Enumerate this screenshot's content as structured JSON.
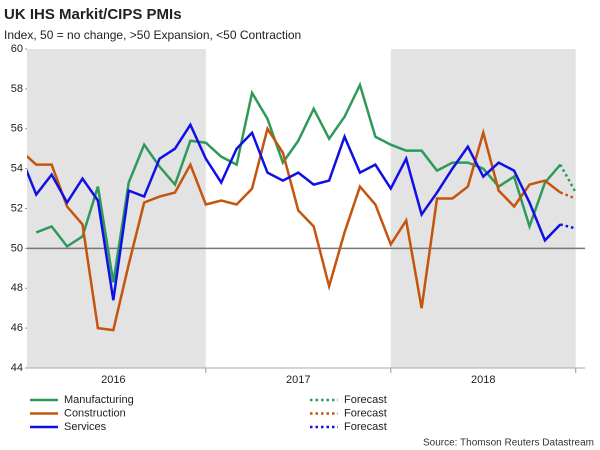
{
  "chart_data": {
    "type": "line",
    "title": "UK IHS Markit/CIPS PMIs",
    "subtitle": "Index, 50 = no change, >50 Expansion, <50 Contraction",
    "source": "Source: Thomson Reuters Datastream",
    "x": [
      0,
      1,
      2,
      3,
      4,
      5,
      6,
      7,
      8,
      9,
      10,
      11,
      12,
      13,
      14,
      15,
      16,
      17,
      18,
      19,
      20,
      21,
      22,
      23,
      24,
      25,
      26,
      27,
      28,
      29,
      30,
      31,
      32,
      33,
      34,
      35,
      36
    ],
    "xlim": [
      0.4,
      36.6
    ],
    "xticks": [
      {
        "value": 6,
        "label": "2016"
      },
      {
        "value": 18,
        "label": "2017"
      },
      {
        "value": 30,
        "label": "2018"
      }
    ],
    "ylim": [
      44,
      60
    ],
    "yticks": [
      44,
      46,
      48,
      50,
      52,
      54,
      56,
      58,
      60
    ],
    "reference_line": 50,
    "series": [
      {
        "name": "Manufacturing",
        "color": "#2e9a5a",
        "style": "solid",
        "values": [
          null,
          50.8,
          51.1,
          50.1,
          50.6,
          53.1,
          48.3,
          53.3,
          55.2,
          54.1,
          53.2,
          55.4,
          55.3,
          54.6,
          54.2,
          57.8,
          56.5,
          54.3,
          55.4,
          57.0,
          55.5,
          56.6,
          58.2,
          55.6,
          55.2,
          54.9,
          54.9,
          53.9,
          54.3,
          54.3,
          54.0,
          53.1,
          53.6,
          51.1,
          53.3,
          54.2,
          null
        ]
      },
      {
        "name": "Construction",
        "color": "#c4540e",
        "style": "solid",
        "values": [
          54.9,
          54.2,
          54.2,
          52.1,
          51.2,
          46.0,
          45.9,
          49.2,
          52.3,
          52.6,
          52.8,
          54.2,
          52.2,
          52.4,
          52.2,
          53.0,
          56.0,
          54.8,
          51.9,
          51.1,
          48.1,
          50.8,
          53.1,
          52.2,
          50.2,
          51.4,
          47.0,
          52.5,
          52.5,
          53.1,
          55.8,
          52.9,
          52.1,
          53.2,
          53.4,
          52.8,
          null
        ]
      },
      {
        "name": "Services",
        "color": "#1010e6",
        "style": "solid",
        "values": [
          54.6,
          52.7,
          53.7,
          52.3,
          53.5,
          52.4,
          47.4,
          52.9,
          52.6,
          54.5,
          55.0,
          56.2,
          54.5,
          53.3,
          55.0,
          55.8,
          53.8,
          53.4,
          53.8,
          53.2,
          53.4,
          55.6,
          53.8,
          54.2,
          53.0,
          54.5,
          51.7,
          52.8,
          54.0,
          55.1,
          53.6,
          54.3,
          53.9,
          52.3,
          50.4,
          51.2,
          null
        ]
      },
      {
        "name": "Forecast",
        "color": "#2e9a5a",
        "style": "dotted",
        "values": [
          null,
          null,
          null,
          null,
          null,
          null,
          null,
          null,
          null,
          null,
          null,
          null,
          null,
          null,
          null,
          null,
          null,
          null,
          null,
          null,
          null,
          null,
          null,
          null,
          null,
          null,
          null,
          null,
          null,
          null,
          null,
          null,
          null,
          null,
          null,
          54.2,
          52.8
        ]
      },
      {
        "name": "Forecast",
        "color": "#c4540e",
        "style": "dotted",
        "values": [
          null,
          null,
          null,
          null,
          null,
          null,
          null,
          null,
          null,
          null,
          null,
          null,
          null,
          null,
          null,
          null,
          null,
          null,
          null,
          null,
          null,
          null,
          null,
          null,
          null,
          null,
          null,
          null,
          null,
          null,
          null,
          null,
          null,
          null,
          null,
          52.8,
          52.5
        ]
      },
      {
        "name": "Forecast",
        "color": "#1010e6",
        "style": "dotted",
        "values": [
          null,
          null,
          null,
          null,
          null,
          null,
          null,
          null,
          null,
          null,
          null,
          null,
          null,
          null,
          null,
          null,
          null,
          null,
          null,
          null,
          null,
          null,
          null,
          null,
          null,
          null,
          null,
          null,
          null,
          null,
          null,
          null,
          null,
          null,
          null,
          51.2,
          51.0
        ]
      }
    ]
  }
}
